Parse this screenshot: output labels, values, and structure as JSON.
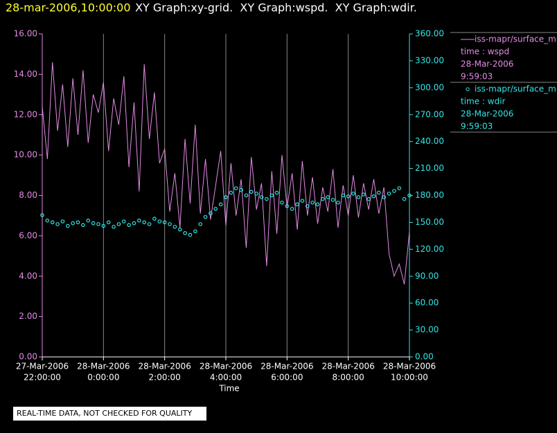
{
  "chart_data": {
    "type": "line",
    "header": {
      "timestamp": "28-mar-2006,10:00:00",
      "title": " XY Graph:xy-grid.  XY Graph:wspd.  XY Graph:wdir."
    },
    "xlabel": "Time",
    "footer": "REAL-TIME DATA, NOT CHECKED FOR QUALITY",
    "grid": true,
    "x": [
      "2006-03-27T22:00",
      "2006-03-27T22:10",
      "2006-03-27T22:20",
      "2006-03-27T22:30",
      "2006-03-27T22:40",
      "2006-03-27T22:50",
      "2006-03-27T23:00",
      "2006-03-27T23:10",
      "2006-03-27T23:20",
      "2006-03-27T23:30",
      "2006-03-27T23:40",
      "2006-03-27T23:50",
      "2006-03-28T00:00",
      "2006-03-28T00:10",
      "2006-03-28T00:20",
      "2006-03-28T00:30",
      "2006-03-28T00:40",
      "2006-03-28T00:50",
      "2006-03-28T01:00",
      "2006-03-28T01:10",
      "2006-03-28T01:20",
      "2006-03-28T01:30",
      "2006-03-28T01:40",
      "2006-03-28T01:50",
      "2006-03-28T02:00",
      "2006-03-28T02:10",
      "2006-03-28T02:20",
      "2006-03-28T02:30",
      "2006-03-28T02:40",
      "2006-03-28T02:50",
      "2006-03-28T03:00",
      "2006-03-28T03:10",
      "2006-03-28T03:20",
      "2006-03-28T03:30",
      "2006-03-28T03:40",
      "2006-03-28T03:50",
      "2006-03-28T04:00",
      "2006-03-28T04:10",
      "2006-03-28T04:20",
      "2006-03-28T04:30",
      "2006-03-28T04:40",
      "2006-03-28T04:50",
      "2006-03-28T05:00",
      "2006-03-28T05:10",
      "2006-03-28T05:20",
      "2006-03-28T05:30",
      "2006-03-28T05:40",
      "2006-03-28T05:50",
      "2006-03-28T06:00",
      "2006-03-28T06:10",
      "2006-03-28T06:20",
      "2006-03-28T06:30",
      "2006-03-28T06:40",
      "2006-03-28T06:50",
      "2006-03-28T07:00",
      "2006-03-28T07:10",
      "2006-03-28T07:20",
      "2006-03-28T07:30",
      "2006-03-28T07:40",
      "2006-03-28T07:50",
      "2006-03-28T08:00",
      "2006-03-28T08:10",
      "2006-03-28T08:20",
      "2006-03-28T08:30",
      "2006-03-28T08:40",
      "2006-03-28T08:50",
      "2006-03-28T09:00",
      "2006-03-28T09:10",
      "2006-03-28T09:20",
      "2006-03-28T09:30",
      "2006-03-28T09:40",
      "2006-03-28T09:50",
      "2006-03-28T10:00"
    ],
    "xlim": [
      "2006-03-27T22:00",
      "2006-03-28T10:00"
    ],
    "xticks": [
      {
        "value": "2006-03-27T22:00",
        "label": [
          "27-Mar-2006",
          "22:00:00"
        ]
      },
      {
        "value": "2006-03-28T00:00",
        "label": [
          "28-Mar-2006",
          "0:00:00"
        ]
      },
      {
        "value": "2006-03-28T02:00",
        "label": [
          "28-Mar-2006",
          "2:00:00"
        ]
      },
      {
        "value": "2006-03-28T04:00",
        "label": [
          "28-Mar-2006",
          "4:00:00"
        ]
      },
      {
        "value": "2006-03-28T06:00",
        "label": [
          "28-Mar-2006",
          "6:00:00"
        ]
      },
      {
        "value": "2006-03-28T08:00",
        "label": [
          "28-Mar-2006",
          "8:00:00"
        ]
      },
      {
        "value": "2006-03-28T10:00",
        "label": [
          "28-Mar-2006",
          "10:00:00"
        ]
      }
    ],
    "ylim": [
      0,
      16
    ],
    "yticks": [
      {
        "value": 0,
        "label": "0.00"
      },
      {
        "value": 2,
        "label": "2.00"
      },
      {
        "value": 4,
        "label": "4.00"
      },
      {
        "value": 6,
        "label": "6.00"
      },
      {
        "value": 8,
        "label": "8.00"
      },
      {
        "value": 10,
        "label": "10.00"
      },
      {
        "value": 12,
        "label": "12.00"
      },
      {
        "value": 14,
        "label": "14.00"
      },
      {
        "value": 16,
        "label": "16.00"
      }
    ],
    "y2lim": [
      0,
      360
    ],
    "y2ticks": [
      {
        "value": 0,
        "label": "0.00"
      },
      {
        "value": 30,
        "label": "30.00"
      },
      {
        "value": 60,
        "label": "60.00"
      },
      {
        "value": 90,
        "label": "90.00"
      },
      {
        "value": 120,
        "label": "120.00"
      },
      {
        "value": 150,
        "label": "150.00"
      },
      {
        "value": 180,
        "label": "180.00"
      },
      {
        "value": 210,
        "label": "210.00"
      },
      {
        "value": 240,
        "label": "240.00"
      },
      {
        "value": 270,
        "label": "270.00"
      },
      {
        "value": 300,
        "label": "300.00"
      },
      {
        "value": 330,
        "label": "330.00"
      },
      {
        "value": 360,
        "label": "360.00"
      }
    ],
    "series": [
      {
        "name": "iss-mapr/surface_m",
        "legend_info": [
          "time : wspd",
          "28-Mar-2006",
          "9:59:03"
        ],
        "color": "#e58be5",
        "marker": "line",
        "values": [
          12.4,
          9.8,
          14.6,
          11.2,
          13.5,
          10.4,
          13.8,
          11.0,
          14.2,
          10.6,
          13.0,
          12.1,
          13.6,
          10.2,
          12.8,
          11.5,
          13.9,
          9.4,
          12.6,
          8.2,
          14.5,
          10.8,
          13.1,
          9.6,
          10.3,
          7.2,
          9.1,
          6.4,
          10.8,
          7.6,
          11.5,
          7.1,
          9.8,
          6.8,
          8.5,
          10.2,
          6.5,
          9.6,
          7.0,
          8.8,
          5.4,
          9.9,
          7.3,
          8.6,
          4.5,
          9.2,
          6.1,
          10.0,
          7.4,
          9.1,
          6.3,
          9.7,
          7.0,
          8.9,
          6.6,
          8.4,
          7.2,
          9.3,
          6.4,
          8.5,
          7.0,
          9.0,
          6.9,
          8.6,
          7.3,
          8.8,
          7.1,
          8.4,
          5.1,
          4.0,
          4.6,
          3.6,
          6.2
        ]
      },
      {
        "name": "iss-mapr/surface_m",
        "legend_info": [
          "time : wdir",
          "28-Mar-2006",
          "9:59:03"
        ],
        "color": "#33e5e5",
        "marker": "circle",
        "axis": "y2",
        "values": [
          158,
          152,
          150,
          148,
          151,
          146,
          149,
          150,
          147,
          152,
          149,
          148,
          146,
          150,
          145,
          148,
          151,
          147,
          149,
          152,
          150,
          148,
          154,
          151,
          150,
          148,
          145,
          142,
          138,
          136,
          140,
          148,
          156,
          160,
          165,
          170,
          178,
          183,
          188,
          186,
          180,
          184,
          182,
          178,
          176,
          180,
          183,
          172,
          168,
          165,
          170,
          174,
          168,
          172,
          170,
          176,
          178,
          175,
          172,
          180,
          179,
          182,
          178,
          181,
          176,
          179,
          183,
          178,
          182,
          185,
          188,
          176,
          180
        ]
      }
    ]
  }
}
